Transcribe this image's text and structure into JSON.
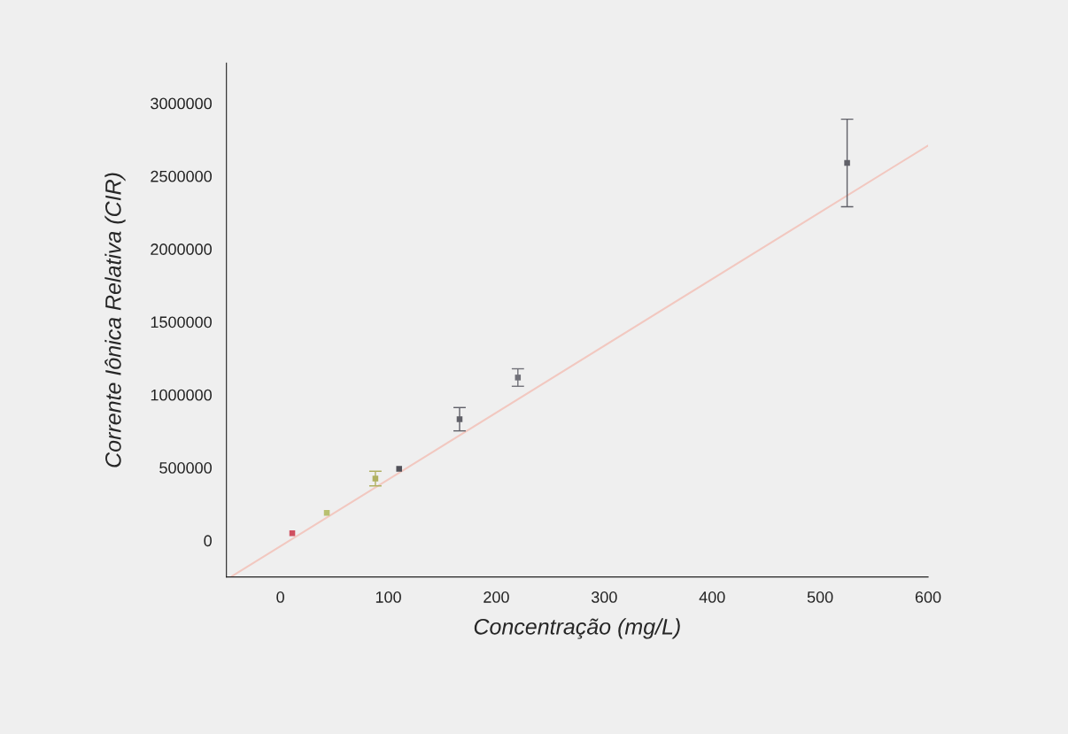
{
  "chart_data": {
    "type": "scatter",
    "xlabel": "Concentração (mg/L)",
    "ylabel": "Corrente Iônica Relativa (CIR)",
    "xlim": [
      -50,
      600
    ],
    "ylim": [
      -250000,
      3275000
    ],
    "xticks": [
      0,
      100,
      200,
      300,
      400,
      500,
      600
    ],
    "yticks": [
      0,
      500000,
      1000000,
      1500000,
      2000000,
      2500000,
      3000000
    ],
    "grid": false,
    "legend": false,
    "marker": "square",
    "series": [
      {
        "x": [
          11,
          43,
          88,
          110,
          166,
          220,
          525
        ],
        "values": [
          50000,
          190000,
          425000,
          492000,
          832000,
          1118000,
          2590000
        ],
        "colors": [
          "#d05060",
          "#b8c070",
          "#b0b060",
          "#505058",
          "#606068",
          "#707078",
          "#606068"
        ],
        "errors": [
          null,
          null,
          50000,
          null,
          80000,
          60000,
          300000
        ]
      },
      {
        "type": "line",
        "x": [
          -45,
          600
        ],
        "values": [
          -246000,
          2710000
        ],
        "color": "#f2c8c0",
        "line_style": "solid",
        "marker": "none"
      }
    ]
  }
}
